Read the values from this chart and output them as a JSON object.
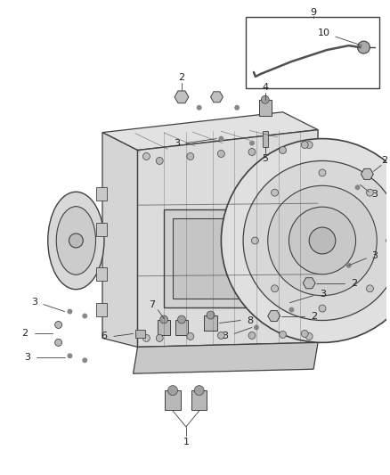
{
  "fig_width": 4.38,
  "fig_height": 5.33,
  "dpi": 100,
  "bg_color": "#ffffff",
  "lc": "#404040",
  "lc_light": "#707070",
  "tc": "#222222",
  "fill_body": "#e8e8e8",
  "fill_light": "#f0f0f0",
  "fill_dark": "#d0d0d0"
}
